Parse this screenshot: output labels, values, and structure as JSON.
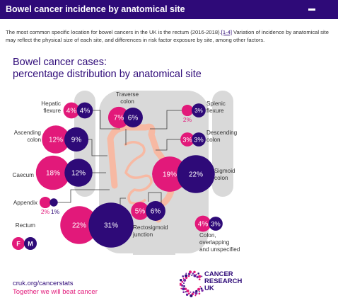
{
  "header": {
    "title": "Bowel cancer incidence by anatomical site",
    "collapse_icon": "minus-icon"
  },
  "intro": {
    "text_before": "The most common specific location for bowel cancers in the UK is the rectum (2016-2018).",
    "ref_link": "[1-4]",
    "text_after": " Variation of incidence by anatomical site may reflect the physical size of each site, and differences in risk factor exposure by site, among other factors."
  },
  "infographic": {
    "title_line1": "Bowel cancer cases:",
    "title_line2": "percentage distribution by anatomical site"
  },
  "colors": {
    "female": "#e2197a",
    "male": "#2e0a78",
    "body": "#d9d9d9",
    "bowel": "#f7b9a3",
    "title": "#2e0a78"
  },
  "legend": {
    "female": "F",
    "male": "M"
  },
  "chart_data": {
    "type": "bubble",
    "series": [
      {
        "name": "F",
        "color": "#e2197a"
      },
      {
        "name": "M",
        "color": "#2e0a78"
      }
    ],
    "sites": [
      {
        "name": "Hepatic flexure",
        "label_lines": [
          "Hepatic",
          "flexure"
        ],
        "female": 4,
        "male": 4
      },
      {
        "name": "Traverse colon",
        "label_lines": [
          "Traverse",
          "colon"
        ],
        "female": 7,
        "male": 6
      },
      {
        "name": "Splenic flexure",
        "label_lines": [
          "Splenic",
          "flexure"
        ],
        "female": 2,
        "male": 3
      },
      {
        "name": "Ascending colon",
        "label_lines": [
          "Ascending",
          "colon"
        ],
        "female": 12,
        "male": 9
      },
      {
        "name": "Descending colon",
        "label_lines": [
          "Descending",
          "colon"
        ],
        "female": 3,
        "male": 3
      },
      {
        "name": "Caecum",
        "label_lines": [
          "Caecum"
        ],
        "female": 18,
        "male": 12
      },
      {
        "name": "Sigmoid colon",
        "label_lines": [
          "Sigmoid",
          "colon"
        ],
        "female": 19,
        "male": 22
      },
      {
        "name": "Appendix",
        "label_lines": [
          "Appendix"
        ],
        "female": 2,
        "male": 1
      },
      {
        "name": "Rectum",
        "label_lines": [
          "Rectum"
        ],
        "female": 22,
        "male": 31
      },
      {
        "name": "Rectosigmoid junction",
        "label_lines": [
          "Rectosigmoid",
          "junction"
        ],
        "female": 5,
        "male": 6
      },
      {
        "name": "Colon, overlapping and unspecified",
        "label_lines": [
          "Colon,",
          "overlapping",
          "and unspecified"
        ],
        "female": 4,
        "male": 3
      }
    ]
  },
  "footer": {
    "url": "cruk.org/cancerstats",
    "tagline": "Together we will beat cancer",
    "logo_lines": [
      "CANCER",
      "RESEARCH",
      "UK"
    ]
  }
}
